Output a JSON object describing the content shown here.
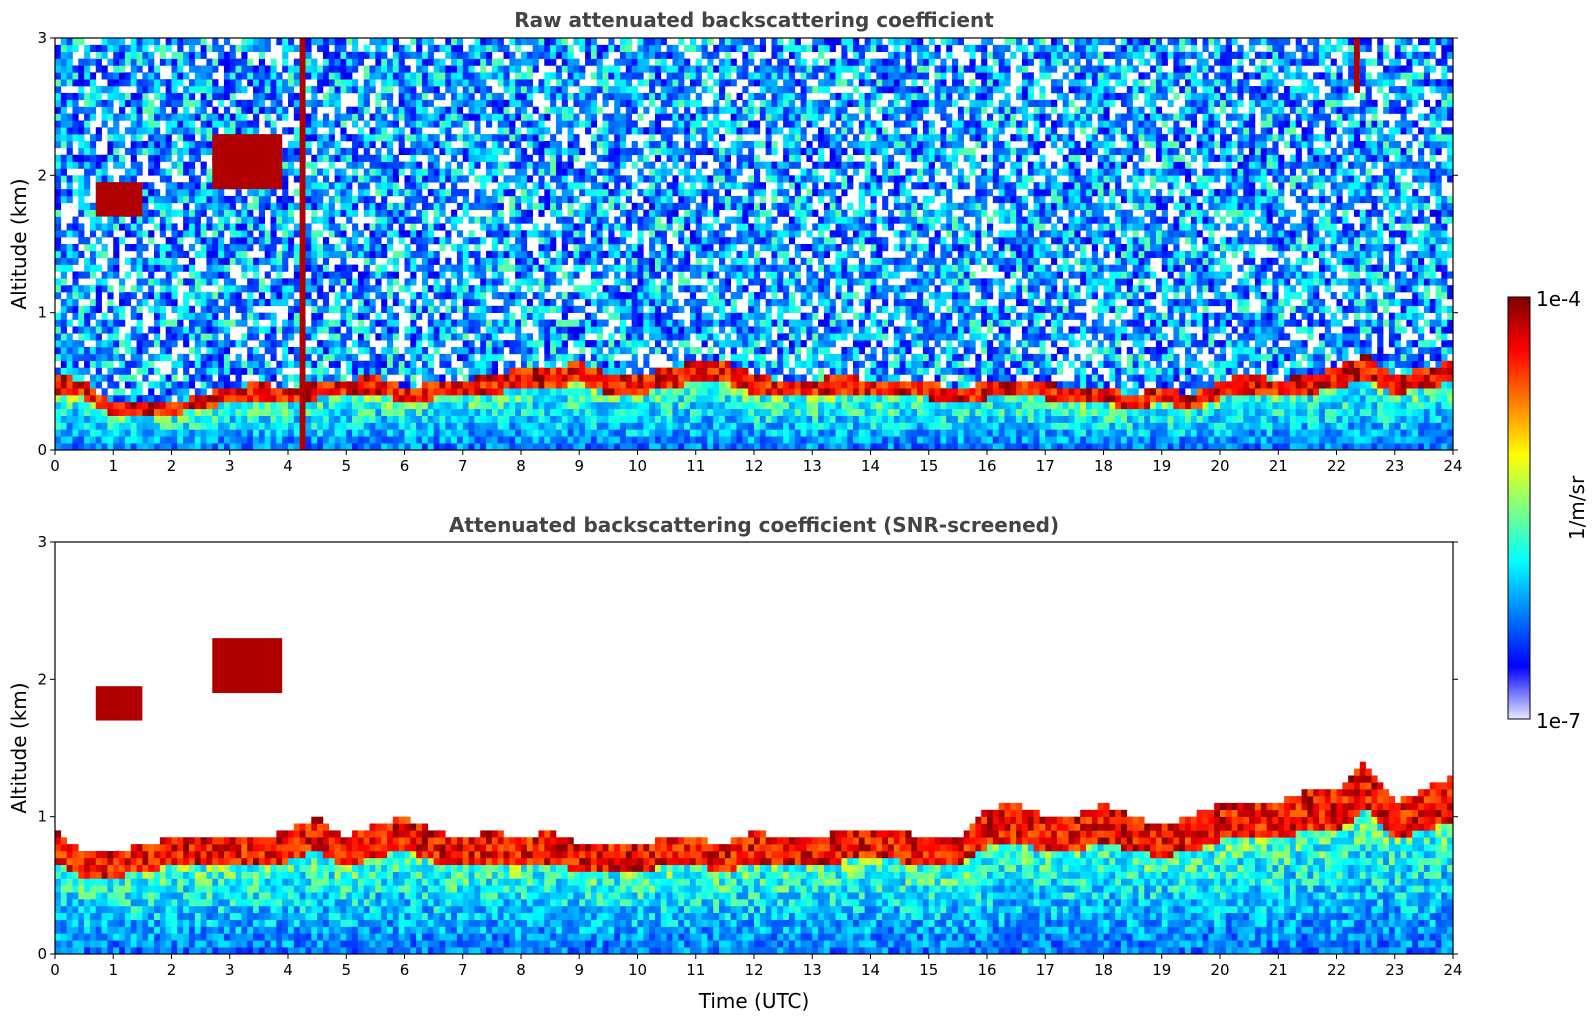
{
  "chart_data": [
    {
      "type": "heatmap",
      "title": "Raw attenuated backscattering coefficient",
      "xlabel": "",
      "ylabel": "Altitude (km)",
      "xlim": [
        0,
        24
      ],
      "ylim": [
        0,
        3
      ],
      "xticks": [
        "0",
        "1",
        "2",
        "3",
        "4",
        "5",
        "6",
        "7",
        "8",
        "9",
        "10",
        "11",
        "12",
        "13",
        "14",
        "15",
        "16",
        "17",
        "18",
        "19",
        "20",
        "21",
        "22",
        "23",
        "24"
      ],
      "yticks": [
        "0",
        "1",
        "2",
        "3"
      ],
      "x": [
        0,
        0.5,
        1,
        1.5,
        2,
        2.5,
        3,
        3.5,
        4,
        4.5,
        5,
        5.5,
        6,
        6.5,
        7,
        7.5,
        8,
        8.5,
        9,
        9.5,
        10,
        10.5,
        11,
        11.5,
        12,
        12.5,
        13,
        13.5,
        14,
        14.5,
        15,
        15.5,
        16,
        16.5,
        17,
        17.5,
        18,
        18.5,
        19,
        19.5,
        20,
        20.5,
        21,
        21.5,
        22,
        22.5,
        23,
        23.5
      ],
      "boundary_layer_top_km": [
        0.55,
        0.5,
        0.35,
        0.35,
        0.35,
        0.4,
        0.45,
        0.5,
        0.45,
        0.5,
        0.5,
        0.55,
        0.45,
        0.5,
        0.5,
        0.55,
        0.6,
        0.6,
        0.65,
        0.55,
        0.55,
        0.6,
        0.65,
        0.65,
        0.55,
        0.5,
        0.5,
        0.55,
        0.5,
        0.5,
        0.5,
        0.45,
        0.5,
        0.5,
        0.5,
        0.45,
        0.45,
        0.4,
        0.45,
        0.4,
        0.5,
        0.55,
        0.5,
        0.55,
        0.6,
        0.7,
        0.55,
        0.6
      ],
      "features": [
        {
          "label": "",
          "x": [
            0.7,
            1.5
          ],
          "y": [
            1.7,
            1.95
          ],
          "level": "1e-4"
        },
        {
          "label": "",
          "x": [
            2.7,
            3.9
          ],
          "y": [
            1.9,
            2.3
          ],
          "level": "1e-4"
        },
        {
          "label": "",
          "x": [
            4.2,
            4.3
          ],
          "y": [
            0,
            3
          ],
          "level": "1e-4"
        },
        {
          "label": "",
          "x": [
            22.3,
            22.4
          ],
          "y": [
            2.6,
            3
          ],
          "level": "1e-4"
        }
      ],
      "noise_level": "1e-7 to 1e-5",
      "grid": false
    },
    {
      "type": "heatmap",
      "title": "Attenuated backscattering coefficient (SNR-screened)",
      "xlabel": "Time (UTC)",
      "ylabel": "Altitude (km)",
      "xlim": [
        0,
        24
      ],
      "ylim": [
        0,
        3
      ],
      "xticks": [
        "0",
        "1",
        "2",
        "3",
        "4",
        "5",
        "6",
        "7",
        "8",
        "9",
        "10",
        "11",
        "12",
        "13",
        "14",
        "15",
        "16",
        "17",
        "18",
        "19",
        "20",
        "21",
        "22",
        "23",
        "24"
      ],
      "yticks": [
        "0",
        "1",
        "2",
        "3"
      ],
      "x": [
        0,
        0.5,
        1,
        1.5,
        2,
        2.5,
        3,
        3.5,
        4,
        4.5,
        5,
        5.5,
        6,
        6.5,
        7,
        7.5,
        8,
        8.5,
        9,
        9.5,
        10,
        10.5,
        11,
        11.5,
        12,
        12.5,
        13,
        13.5,
        14,
        14.5,
        15,
        15.5,
        16,
        16.5,
        17,
        17.5,
        18,
        18.5,
        19,
        19.5,
        20,
        20.5,
        21,
        21.5,
        22,
        22.5,
        23,
        23.5
      ],
      "boundary_layer_top_km": [
        0.9,
        0.75,
        0.75,
        0.8,
        0.85,
        0.85,
        0.85,
        0.85,
        0.9,
        1.0,
        0.85,
        0.95,
        1.0,
        0.9,
        0.85,
        0.9,
        0.85,
        0.9,
        0.8,
        0.8,
        0.8,
        0.85,
        0.85,
        0.8,
        0.9,
        0.85,
        0.85,
        0.9,
        0.9,
        0.9,
        0.85,
        0.85,
        1.05,
        1.1,
        1.0,
        1.0,
        1.1,
        1.0,
        0.95,
        1.0,
        1.1,
        1.1,
        1.1,
        1.2,
        1.2,
        1.4,
        1.1,
        1.2
      ],
      "features": [
        {
          "label": "",
          "x": [
            0.7,
            1.5
          ],
          "y": [
            1.7,
            1.95
          ],
          "level": "1e-4"
        },
        {
          "label": "",
          "x": [
            2.7,
            3.9
          ],
          "y": [
            1.9,
            2.3
          ],
          "level": "1e-4"
        }
      ],
      "grid": false
    }
  ],
  "colorbar": {
    "label": "1/m/sr",
    "max_label": "1e-4",
    "min_label": "1e-7",
    "colormap": "jet",
    "colors": [
      "#e8e8ff",
      "#0000ff",
      "#0080ff",
      "#00ffff",
      "#80ff80",
      "#ffff00",
      "#ff8000",
      "#ff0000",
      "#800000"
    ]
  }
}
